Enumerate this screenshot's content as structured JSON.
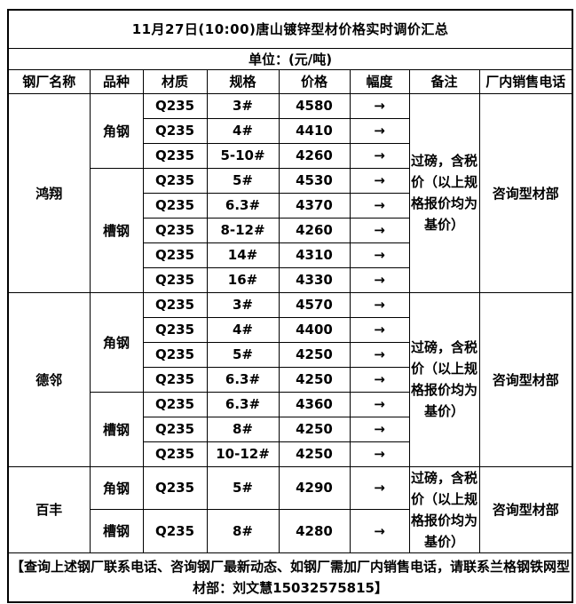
{
  "title": "11月27日(10:00)唐山镀锌型材价格实时调价汇总",
  "unit_label": "单位：(元/吨)",
  "columns": [
    "钢厂名称",
    "品种",
    "材质",
    "规格",
    "价格",
    "幅度",
    "备注",
    "厂内销售电话"
  ],
  "mills": [
    {
      "name": "鸿翔",
      "note": "过磅，含税价（以上规格报价均为基价）",
      "phone": "咨询型材部",
      "varieties": [
        {
          "variety": "角钢",
          "rows": [
            {
              "material": "Q235",
              "spec": "3#",
              "price": "4580",
              "trend": "→"
            },
            {
              "material": "Q235",
              "spec": "4#",
              "price": "4410",
              "trend": "→"
            },
            {
              "material": "Q235",
              "spec": "5-10#",
              "price": "4260",
              "trend": "→"
            }
          ]
        },
        {
          "variety": "槽钢",
          "rows": [
            {
              "material": "Q235",
              "spec": "5#",
              "price": "4530",
              "trend": "→"
            },
            {
              "material": "Q235",
              "spec": "6.3#",
              "price": "4370",
              "trend": "→"
            },
            {
              "material": "Q235",
              "spec": "8-12#",
              "price": "4260",
              "trend": "→"
            },
            {
              "material": "Q235",
              "spec": "14#",
              "price": "4310",
              "trend": "→"
            },
            {
              "material": "Q235",
              "spec": "16#",
              "price": "4330",
              "trend": "→"
            }
          ]
        }
      ]
    },
    {
      "name": "德邻",
      "note": "过磅，含税价（以上规格报价均为基价）",
      "phone": "咨询型材部",
      "varieties": [
        {
          "variety": "角钢",
          "rows": [
            {
              "material": "Q235",
              "spec": "3#",
              "price": "4570",
              "trend": "→"
            },
            {
              "material": "Q235",
              "spec": "4#",
              "price": "4400",
              "trend": "→"
            },
            {
              "material": "Q235",
              "spec": "5#",
              "price": "4250",
              "trend": "→"
            },
            {
              "material": "Q235",
              "spec": "6.3#",
              "price": "4250",
              "trend": "→"
            }
          ]
        },
        {
          "variety": "槽钢",
          "rows": [
            {
              "material": "Q235",
              "spec": "6.3#",
              "price": "4360",
              "trend": "→"
            },
            {
              "material": "Q235",
              "spec": "8#",
              "price": "4250",
              "trend": "→"
            },
            {
              "material": "Q235",
              "spec": "10-12#",
              "price": "4250",
              "trend": "→"
            }
          ]
        }
      ]
    },
    {
      "name": "百丰",
      "note": "过磅，含税价（以上规格报价均为基价）",
      "phone": "咨询型材部",
      "varieties": [
        {
          "variety": "角钢",
          "rows": [
            {
              "material": "Q235",
              "spec": "5#",
              "price": "4290",
              "trend": "→"
            }
          ]
        },
        {
          "variety": "槽钢",
          "rows": [
            {
              "material": "Q235",
              "spec": "8#",
              "price": "4280",
              "trend": "→"
            }
          ]
        }
      ]
    }
  ],
  "footer": "【查询上述钢厂联系电话、咨询钢厂最新动态、如钢厂需加厂内销售电话，请联系兰格钢铁网型材部：刘文慧15032575815】"
}
